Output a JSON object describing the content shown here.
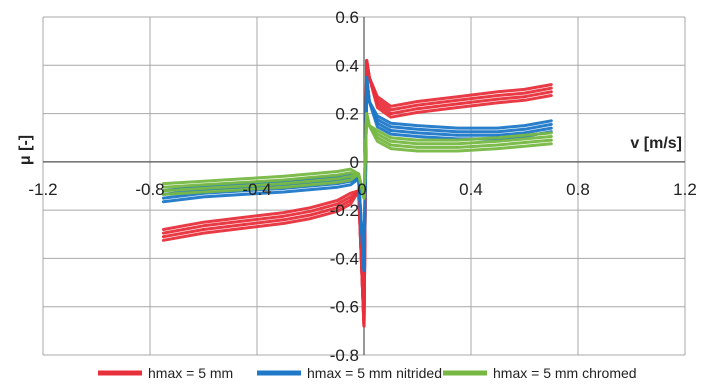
{
  "chart_data": {
    "type": "line",
    "title": "",
    "xlabel": "v [m/s]",
    "ylabel": "μ [-]",
    "xlim": [
      -1.2,
      1.2
    ],
    "ylim": [
      -0.8,
      0.6
    ],
    "xticks": [
      -1.2,
      -0.8,
      -0.4,
      0,
      0.4,
      0.8,
      1.2
    ],
    "yticks": [
      -0.8,
      -0.6,
      -0.4,
      -0.2,
      0,
      0.2,
      0.4,
      0.6
    ],
    "x_tick_labels": [
      "-1.2",
      "-0.8",
      "-0.4",
      "0",
      "0.4",
      "0.8",
      "1.2"
    ],
    "y_tick_labels": [
      "-0.8",
      "-0.6",
      "-0.4",
      "-0.2",
      "0",
      "0.2",
      "0.4",
      "0.6"
    ],
    "grid": true,
    "legend_position": "bottom",
    "series": [
      {
        "name": "hmax = 5 mm",
        "color": "#e8303c",
        "x": [
          -0.75,
          -0.6,
          -0.45,
          -0.3,
          -0.2,
          -0.1,
          -0.05,
          -0.02,
          0,
          0.01,
          0.02,
          0.05,
          0.1,
          0.2,
          0.35,
          0.5,
          0.6,
          0.7
        ],
        "y": [
          -0.31,
          -0.28,
          -0.26,
          -0.24,
          -0.22,
          -0.19,
          -0.16,
          -0.12,
          -0.68,
          0.42,
          0.35,
          0.24,
          0.2,
          0.22,
          0.24,
          0.26,
          0.27,
          0.29
        ]
      },
      {
        "name": "hmax = 5 mm nitrided",
        "color": "#1f78c8",
        "x": [
          -0.75,
          -0.6,
          -0.45,
          -0.3,
          -0.2,
          -0.1,
          -0.05,
          -0.02,
          0,
          0.01,
          0.02,
          0.05,
          0.1,
          0.2,
          0.35,
          0.5,
          0.6,
          0.7
        ],
        "y": [
          -0.15,
          -0.13,
          -0.12,
          -0.11,
          -0.1,
          -0.09,
          -0.08,
          -0.07,
          -0.45,
          0.35,
          0.25,
          0.16,
          0.13,
          0.12,
          0.11,
          0.11,
          0.12,
          0.14
        ]
      },
      {
        "name": "hmax = 5 mm chromed",
        "color": "#77b843",
        "x": [
          -0.75,
          -0.6,
          -0.45,
          -0.3,
          -0.2,
          -0.1,
          -0.05,
          -0.02,
          0,
          0.01,
          0.02,
          0.05,
          0.1,
          0.2,
          0.35,
          0.5,
          0.6,
          0.7
        ],
        "y": [
          -0.12,
          -0.11,
          -0.1,
          -0.09,
          -0.08,
          -0.07,
          -0.06,
          -0.05,
          -0.15,
          0.2,
          0.15,
          0.1,
          0.07,
          0.06,
          0.06,
          0.07,
          0.08,
          0.09
        ]
      }
    ]
  }
}
